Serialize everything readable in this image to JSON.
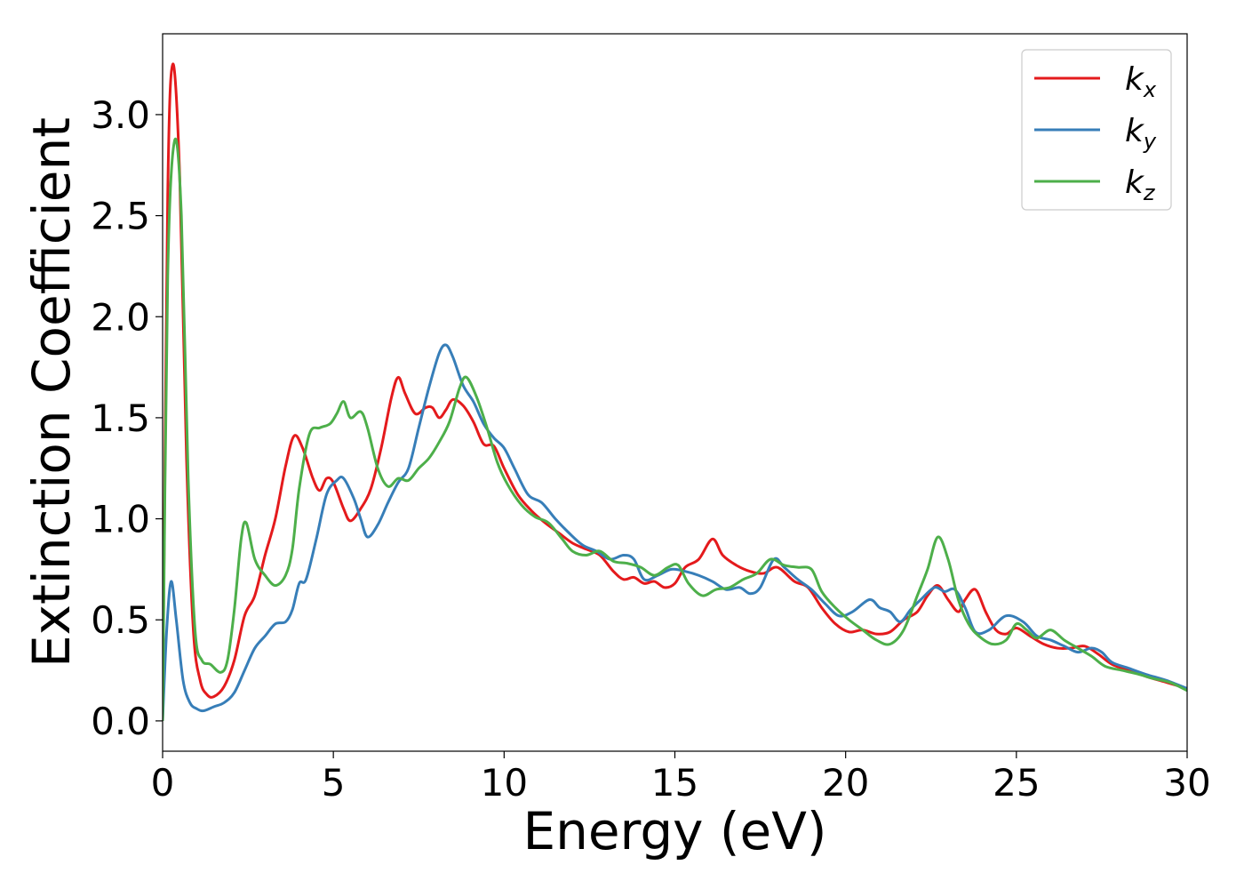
{
  "chart_data": {
    "type": "line",
    "title": "",
    "xlabel": "Energy (eV)",
    "ylabel": "Extinction Coefficient",
    "xlim": [
      0,
      30
    ],
    "ylim": [
      -0.15,
      3.4
    ],
    "xticks": [
      0,
      5,
      10,
      15,
      20,
      25,
      30
    ],
    "xtick_labels": [
      "0",
      "5",
      "10",
      "15",
      "20",
      "25",
      "30"
    ],
    "yticks": [
      0.0,
      0.5,
      1.0,
      1.5,
      2.0,
      2.5,
      3.0
    ],
    "ytick_labels": [
      "0.0",
      "0.5",
      "1.0",
      "1.5",
      "2.0",
      "2.5",
      "3.0"
    ],
    "grid": false,
    "legend_position": "top-right",
    "series": [
      {
        "name": "k",
        "subscript": "x",
        "color": "#e41a1c",
        "points": [
          [
            0,
            0.0
          ],
          [
            0.15,
            2.6
          ],
          [
            0.3,
            3.25
          ],
          [
            0.5,
            2.7
          ],
          [
            0.7,
            1.3
          ],
          [
            0.9,
            0.45
          ],
          [
            1.1,
            0.2
          ],
          [
            1.3,
            0.13
          ],
          [
            1.5,
            0.12
          ],
          [
            1.8,
            0.17
          ],
          [
            2.1,
            0.3
          ],
          [
            2.4,
            0.52
          ],
          [
            2.7,
            0.62
          ],
          [
            3.0,
            0.82
          ],
          [
            3.3,
            1.0
          ],
          [
            3.6,
            1.26
          ],
          [
            3.85,
            1.41
          ],
          [
            4.1,
            1.35
          ],
          [
            4.4,
            1.2
          ],
          [
            4.6,
            1.14
          ],
          [
            4.8,
            1.2
          ],
          [
            5.0,
            1.18
          ],
          [
            5.3,
            1.05
          ],
          [
            5.5,
            0.99
          ],
          [
            5.8,
            1.05
          ],
          [
            6.1,
            1.15
          ],
          [
            6.4,
            1.35
          ],
          [
            6.7,
            1.6
          ],
          [
            6.9,
            1.7
          ],
          [
            7.1,
            1.62
          ],
          [
            7.4,
            1.52
          ],
          [
            7.7,
            1.55
          ],
          [
            7.9,
            1.55
          ],
          [
            8.1,
            1.5
          ],
          [
            8.3,
            1.54
          ],
          [
            8.5,
            1.59
          ],
          [
            8.8,
            1.56
          ],
          [
            9.1,
            1.48
          ],
          [
            9.4,
            1.37
          ],
          [
            9.7,
            1.36
          ],
          [
            10.0,
            1.25
          ],
          [
            10.4,
            1.12
          ],
          [
            10.8,
            1.04
          ],
          [
            11.2,
            0.98
          ],
          [
            11.6,
            0.93
          ],
          [
            12.0,
            0.88
          ],
          [
            12.4,
            0.85
          ],
          [
            12.8,
            0.82
          ],
          [
            13.2,
            0.74
          ],
          [
            13.5,
            0.7
          ],
          [
            13.8,
            0.71
          ],
          [
            14.1,
            0.68
          ],
          [
            14.4,
            0.69
          ],
          [
            14.7,
            0.66
          ],
          [
            15.0,
            0.68
          ],
          [
            15.3,
            0.76
          ],
          [
            15.7,
            0.8
          ],
          [
            16.1,
            0.9
          ],
          [
            16.4,
            0.82
          ],
          [
            16.8,
            0.77
          ],
          [
            17.2,
            0.74
          ],
          [
            17.6,
            0.73
          ],
          [
            18.0,
            0.76
          ],
          [
            18.5,
            0.69
          ],
          [
            18.9,
            0.66
          ],
          [
            19.3,
            0.56
          ],
          [
            19.7,
            0.48
          ],
          [
            20.1,
            0.44
          ],
          [
            20.5,
            0.45
          ],
          [
            20.9,
            0.43
          ],
          [
            21.3,
            0.44
          ],
          [
            21.7,
            0.5
          ],
          [
            22.1,
            0.54
          ],
          [
            22.4,
            0.62
          ],
          [
            22.7,
            0.67
          ],
          [
            23.0,
            0.6
          ],
          [
            23.3,
            0.54
          ],
          [
            23.5,
            0.6
          ],
          [
            23.8,
            0.65
          ],
          [
            24.1,
            0.54
          ],
          [
            24.4,
            0.45
          ],
          [
            24.7,
            0.43
          ],
          [
            25.0,
            0.46
          ],
          [
            25.4,
            0.42
          ],
          [
            25.8,
            0.38
          ],
          [
            26.2,
            0.36
          ],
          [
            26.6,
            0.36
          ],
          [
            27.0,
            0.37
          ],
          [
            27.4,
            0.33
          ],
          [
            27.8,
            0.28
          ],
          [
            28.3,
            0.25
          ],
          [
            28.8,
            0.22
          ],
          [
            29.4,
            0.19
          ],
          [
            30.0,
            0.16
          ]
        ]
      },
      {
        "name": "k",
        "subscript": "y",
        "color": "#377eb8",
        "points": [
          [
            0,
            0.0
          ],
          [
            0.12,
            0.45
          ],
          [
            0.25,
            0.69
          ],
          [
            0.4,
            0.5
          ],
          [
            0.6,
            0.2
          ],
          [
            0.8,
            0.09
          ],
          [
            1.0,
            0.06
          ],
          [
            1.2,
            0.05
          ],
          [
            1.5,
            0.07
          ],
          [
            1.8,
            0.09
          ],
          [
            2.1,
            0.14
          ],
          [
            2.4,
            0.25
          ],
          [
            2.7,
            0.36
          ],
          [
            3.0,
            0.42
          ],
          [
            3.3,
            0.48
          ],
          [
            3.6,
            0.49
          ],
          [
            3.8,
            0.55
          ],
          [
            4.0,
            0.68
          ],
          [
            4.2,
            0.7
          ],
          [
            4.5,
            0.9
          ],
          [
            4.8,
            1.12
          ],
          [
            5.1,
            1.19
          ],
          [
            5.3,
            1.2
          ],
          [
            5.6,
            1.1
          ],
          [
            5.8,
            1.0
          ],
          [
            6.0,
            0.91
          ],
          [
            6.3,
            0.97
          ],
          [
            6.6,
            1.08
          ],
          [
            6.9,
            1.18
          ],
          [
            7.2,
            1.25
          ],
          [
            7.5,
            1.45
          ],
          [
            7.8,
            1.65
          ],
          [
            8.1,
            1.82
          ],
          [
            8.3,
            1.86
          ],
          [
            8.5,
            1.8
          ],
          [
            8.8,
            1.66
          ],
          [
            9.1,
            1.58
          ],
          [
            9.4,
            1.47
          ],
          [
            9.7,
            1.4
          ],
          [
            10.0,
            1.35
          ],
          [
            10.3,
            1.25
          ],
          [
            10.7,
            1.12
          ],
          [
            11.1,
            1.08
          ],
          [
            11.5,
            1.0
          ],
          [
            11.9,
            0.93
          ],
          [
            12.3,
            0.87
          ],
          [
            12.7,
            0.84
          ],
          [
            13.1,
            0.8
          ],
          [
            13.5,
            0.82
          ],
          [
            13.8,
            0.8
          ],
          [
            14.1,
            0.7
          ],
          [
            14.5,
            0.72
          ],
          [
            14.9,
            0.75
          ],
          [
            15.3,
            0.74
          ],
          [
            15.7,
            0.72
          ],
          [
            16.1,
            0.69
          ],
          [
            16.5,
            0.65
          ],
          [
            16.9,
            0.66
          ],
          [
            17.2,
            0.63
          ],
          [
            17.5,
            0.66
          ],
          [
            17.9,
            0.8
          ],
          [
            18.2,
            0.76
          ],
          [
            18.6,
            0.7
          ],
          [
            19.0,
            0.65
          ],
          [
            19.4,
            0.58
          ],
          [
            19.8,
            0.52
          ],
          [
            20.2,
            0.54
          ],
          [
            20.7,
            0.6
          ],
          [
            21.0,
            0.56
          ],
          [
            21.3,
            0.54
          ],
          [
            21.6,
            0.49
          ],
          [
            21.9,
            0.55
          ],
          [
            22.2,
            0.6
          ],
          [
            22.6,
            0.66
          ],
          [
            22.9,
            0.64
          ],
          [
            23.2,
            0.65
          ],
          [
            23.5,
            0.56
          ],
          [
            23.8,
            0.44
          ],
          [
            24.2,
            0.45
          ],
          [
            24.7,
            0.52
          ],
          [
            25.2,
            0.49
          ],
          [
            25.6,
            0.42
          ],
          [
            26.0,
            0.4
          ],
          [
            26.4,
            0.37
          ],
          [
            26.8,
            0.34
          ],
          [
            27.2,
            0.36
          ],
          [
            27.5,
            0.34
          ],
          [
            27.8,
            0.29
          ],
          [
            28.3,
            0.26
          ],
          [
            28.8,
            0.23
          ],
          [
            29.4,
            0.2
          ],
          [
            30.0,
            0.16
          ]
        ]
      },
      {
        "name": "k",
        "subscript": "z",
        "color": "#4daf4a",
        "points": [
          [
            0,
            0.0
          ],
          [
            0.15,
            2.2
          ],
          [
            0.35,
            2.87
          ],
          [
            0.55,
            2.5
          ],
          [
            0.75,
            1.2
          ],
          [
            0.95,
            0.45
          ],
          [
            1.15,
            0.3
          ],
          [
            1.4,
            0.28
          ],
          [
            1.7,
            0.24
          ],
          [
            1.9,
            0.3
          ],
          [
            2.1,
            0.55
          ],
          [
            2.3,
            0.9
          ],
          [
            2.45,
            0.98
          ],
          [
            2.7,
            0.8
          ],
          [
            3.0,
            0.72
          ],
          [
            3.3,
            0.67
          ],
          [
            3.6,
            0.72
          ],
          [
            3.8,
            0.85
          ],
          [
            4.0,
            1.15
          ],
          [
            4.3,
            1.42
          ],
          [
            4.6,
            1.45
          ],
          [
            4.9,
            1.47
          ],
          [
            5.1,
            1.52
          ],
          [
            5.3,
            1.58
          ],
          [
            5.5,
            1.5
          ],
          [
            5.8,
            1.53
          ],
          [
            6.0,
            1.45
          ],
          [
            6.3,
            1.25
          ],
          [
            6.6,
            1.16
          ],
          [
            6.9,
            1.2
          ],
          [
            7.2,
            1.19
          ],
          [
            7.5,
            1.25
          ],
          [
            7.8,
            1.3
          ],
          [
            8.1,
            1.38
          ],
          [
            8.4,
            1.48
          ],
          [
            8.7,
            1.65
          ],
          [
            8.9,
            1.7
          ],
          [
            9.2,
            1.6
          ],
          [
            9.5,
            1.45
          ],
          [
            9.8,
            1.28
          ],
          [
            10.1,
            1.17
          ],
          [
            10.5,
            1.07
          ],
          [
            10.9,
            1.01
          ],
          [
            11.3,
            0.98
          ],
          [
            11.7,
            0.9
          ],
          [
            12.0,
            0.84
          ],
          [
            12.4,
            0.82
          ],
          [
            12.8,
            0.84
          ],
          [
            13.2,
            0.79
          ],
          [
            13.6,
            0.78
          ],
          [
            14.0,
            0.76
          ],
          [
            14.4,
            0.72
          ],
          [
            14.8,
            0.76
          ],
          [
            15.1,
            0.77
          ],
          [
            15.4,
            0.68
          ],
          [
            15.8,
            0.62
          ],
          [
            16.2,
            0.65
          ],
          [
            16.6,
            0.66
          ],
          [
            17.0,
            0.7
          ],
          [
            17.4,
            0.73
          ],
          [
            17.8,
            0.8
          ],
          [
            18.2,
            0.77
          ],
          [
            18.6,
            0.76
          ],
          [
            19.0,
            0.75
          ],
          [
            19.3,
            0.64
          ],
          [
            19.7,
            0.56
          ],
          [
            20.1,
            0.5
          ],
          [
            20.5,
            0.45
          ],
          [
            20.9,
            0.4
          ],
          [
            21.3,
            0.38
          ],
          [
            21.7,
            0.45
          ],
          [
            22.1,
            0.62
          ],
          [
            22.4,
            0.75
          ],
          [
            22.7,
            0.91
          ],
          [
            23.0,
            0.8
          ],
          [
            23.3,
            0.6
          ],
          [
            23.6,
            0.48
          ],
          [
            23.9,
            0.42
          ],
          [
            24.3,
            0.38
          ],
          [
            24.7,
            0.4
          ],
          [
            25.0,
            0.48
          ],
          [
            25.3,
            0.45
          ],
          [
            25.6,
            0.41
          ],
          [
            26.0,
            0.45
          ],
          [
            26.4,
            0.4
          ],
          [
            26.8,
            0.36
          ],
          [
            27.2,
            0.32
          ],
          [
            27.6,
            0.27
          ],
          [
            28.1,
            0.25
          ],
          [
            28.6,
            0.23
          ],
          [
            29.0,
            0.21
          ],
          [
            29.5,
            0.19
          ],
          [
            30.0,
            0.15
          ]
        ]
      }
    ]
  }
}
